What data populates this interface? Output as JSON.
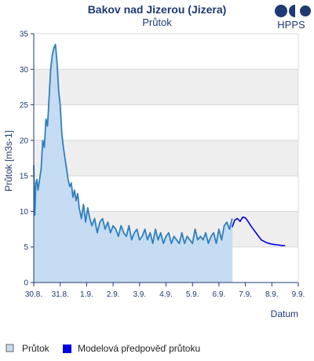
{
  "header": {
    "brand": "HPPS"
  },
  "chart_data": {
    "type": "line",
    "title": "Bakov nad Jizerou (Jizera)",
    "subtitle": "Průtok",
    "ylabel": "Průtok [m3s-1]",
    "xlabel": "Datum",
    "ylim": [
      0,
      35
    ],
    "yticks": [
      0,
      5,
      10,
      15,
      20,
      25,
      30,
      35
    ],
    "xticks": [
      "30.8.",
      "31.8.",
      "1.9.",
      "2.9.",
      "3.9.",
      "4.9.",
      "5.9.",
      "6.9.",
      "7.9.",
      "8.9.",
      "9.9."
    ],
    "xlim": [
      0,
      10
    ],
    "grid": true,
    "legend_position": "bottom",
    "colors": {
      "observed_fill": "#c6dcf2",
      "observed_line": "#2f7fbf",
      "forecast_line": "#0000e0",
      "band": "#eeeeee",
      "grid": "#d8d8d8",
      "axis": "#1f3a73",
      "title": "#1f3a73",
      "brand_dot": "#1f3a73"
    },
    "series": [
      {
        "name": "Průtok",
        "x": [
          0.0,
          0.04,
          0.08,
          0.12,
          0.16,
          0.22,
          0.28,
          0.34,
          0.4,
          0.46,
          0.52,
          0.58,
          0.64,
          0.7,
          0.76,
          0.82,
          0.88,
          0.94,
          1.0,
          1.06,
          1.12,
          1.18,
          1.24,
          1.3,
          1.36,
          1.42,
          1.48,
          1.54,
          1.6,
          1.66,
          1.72,
          1.8,
          1.88,
          1.96,
          2.04,
          2.12,
          2.2,
          2.3,
          2.4,
          2.5,
          2.6,
          2.7,
          2.8,
          2.9,
          3.0,
          3.1,
          3.2,
          3.3,
          3.4,
          3.5,
          3.6,
          3.7,
          3.8,
          3.9,
          4.0,
          4.1,
          4.2,
          4.3,
          4.4,
          4.5,
          4.6,
          4.7,
          4.8,
          4.9,
          5.0,
          5.1,
          5.2,
          5.3,
          5.4,
          5.5,
          5.6,
          5.7,
          5.8,
          5.9,
          6.0,
          6.1,
          6.2,
          6.3,
          6.4,
          6.5,
          6.6,
          6.7,
          6.8,
          6.9,
          7.0,
          7.1,
          7.2,
          7.3,
          7.4,
          7.5
        ],
        "values": [
          16.5,
          9.5,
          14.0,
          14.5,
          13.0,
          14.5,
          16.0,
          20.0,
          19.0,
          23.0,
          22.0,
          26.0,
          30.0,
          32.0,
          33.0,
          33.5,
          31.0,
          27.0,
          25.0,
          21.0,
          19.0,
          17.5,
          16.0,
          14.5,
          13.5,
          14.0,
          12.0,
          13.0,
          11.5,
          12.5,
          10.5,
          9.0,
          11.0,
          8.5,
          10.5,
          9.0,
          8.0,
          9.0,
          7.0,
          8.5,
          9.0,
          7.5,
          8.5,
          7.0,
          8.0,
          7.5,
          6.5,
          8.0,
          7.0,
          6.5,
          8.0,
          6.0,
          7.0,
          7.5,
          6.0,
          6.5,
          7.5,
          6.0,
          7.0,
          5.5,
          7.5,
          6.0,
          7.0,
          5.5,
          6.5,
          7.0,
          5.5,
          6.5,
          6.0,
          5.5,
          7.0,
          5.5,
          6.5,
          6.0,
          5.5,
          7.5,
          6.0,
          6.5,
          6.0,
          7.0,
          5.5,
          6.5,
          7.0,
          5.5,
          7.5,
          6.0,
          8.0,
          8.5,
          7.5,
          9.0
        ]
      },
      {
        "name": "Modelová předpověď průtoku",
        "x": [
          7.5,
          7.6,
          7.7,
          7.8,
          7.9,
          8.0,
          8.1,
          8.2,
          8.3,
          8.4,
          8.5,
          8.6,
          8.7,
          8.8,
          8.9,
          9.0,
          9.1,
          9.2,
          9.3,
          9.4,
          9.5
        ],
        "values": [
          7.8,
          8.8,
          9.0,
          8.6,
          9.2,
          9.1,
          8.6,
          8.0,
          7.5,
          7.0,
          6.5,
          6.0,
          5.8,
          5.6,
          5.5,
          5.4,
          5.35,
          5.3,
          5.25,
          5.2,
          5.2
        ]
      }
    ]
  }
}
